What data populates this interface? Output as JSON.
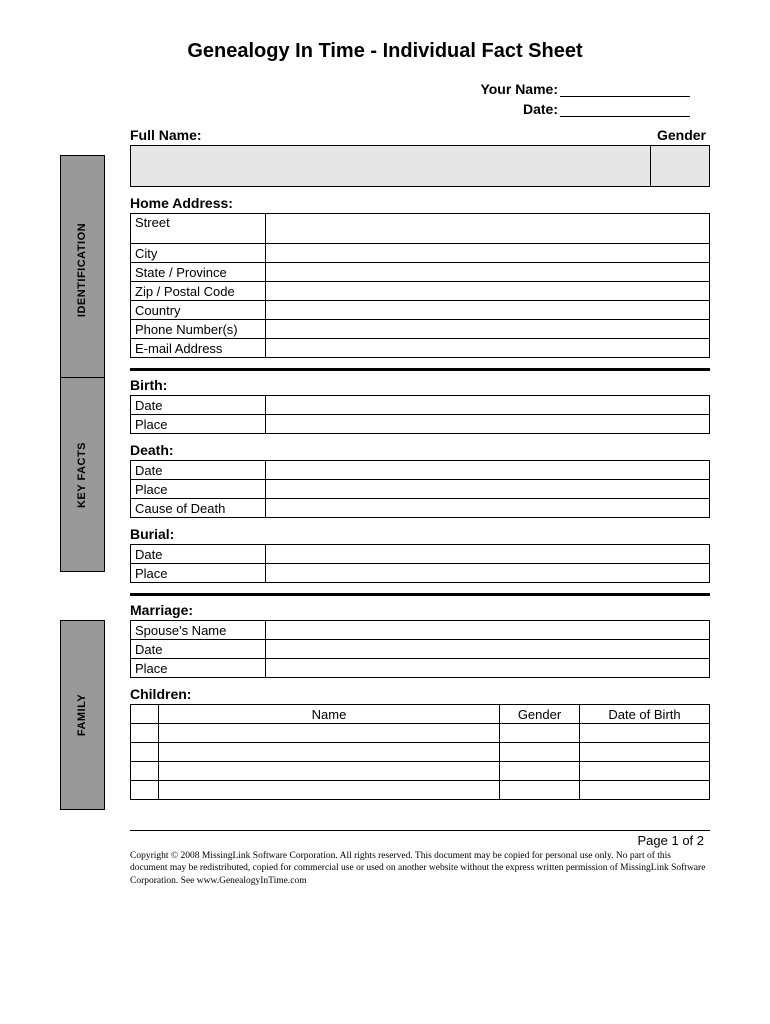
{
  "title": "Genealogy In Time - Individual Fact Sheet",
  "meta": {
    "your_name_label": "Your Name:",
    "date_label": "Date:"
  },
  "identification": {
    "side_label": "IDENTIFICATION",
    "full_name_label": "Full Name:",
    "gender_label": "Gender",
    "home_address_label": "Home Address:",
    "rows": {
      "street": "Street",
      "city": "City",
      "state": "State / Province",
      "zip": "Zip / Postal Code",
      "country": "Country",
      "phone": "Phone Number(s)",
      "email": "E-mail Address"
    }
  },
  "keyfacts": {
    "side_label": "KEY FACTS",
    "birth_label": "Birth:",
    "death_label": "Death:",
    "burial_label": "Burial:",
    "rows": {
      "date": "Date",
      "place": "Place",
      "cause": "Cause of Death"
    }
  },
  "family": {
    "side_label": "FAMILY",
    "marriage_label": "Marriage:",
    "children_label": "Children:",
    "rows": {
      "spouse": "Spouse's Name",
      "date": "Date",
      "place": "Place"
    },
    "children_headers": {
      "name": "Name",
      "gender": "Gender",
      "dob": "Date of Birth"
    },
    "children_row_count": 4
  },
  "footer": {
    "page": "Page 1 of 2",
    "copyright": "Copyright © 2008 MissingLink Software Corporation. All rights reserved.  This document may be copied for personal use only.  No part of this document may be redistributed, copied for commercial use or used on another website without the express written permission of MissingLink Software Corporation. See www.GenealogyInTime.com"
  },
  "layout": {
    "side_heights": {
      "identification": 230,
      "keyfacts": 195,
      "family": 190
    },
    "side_tops": {
      "identification": 28,
      "keyfacts": 0,
      "family": 18
    }
  }
}
